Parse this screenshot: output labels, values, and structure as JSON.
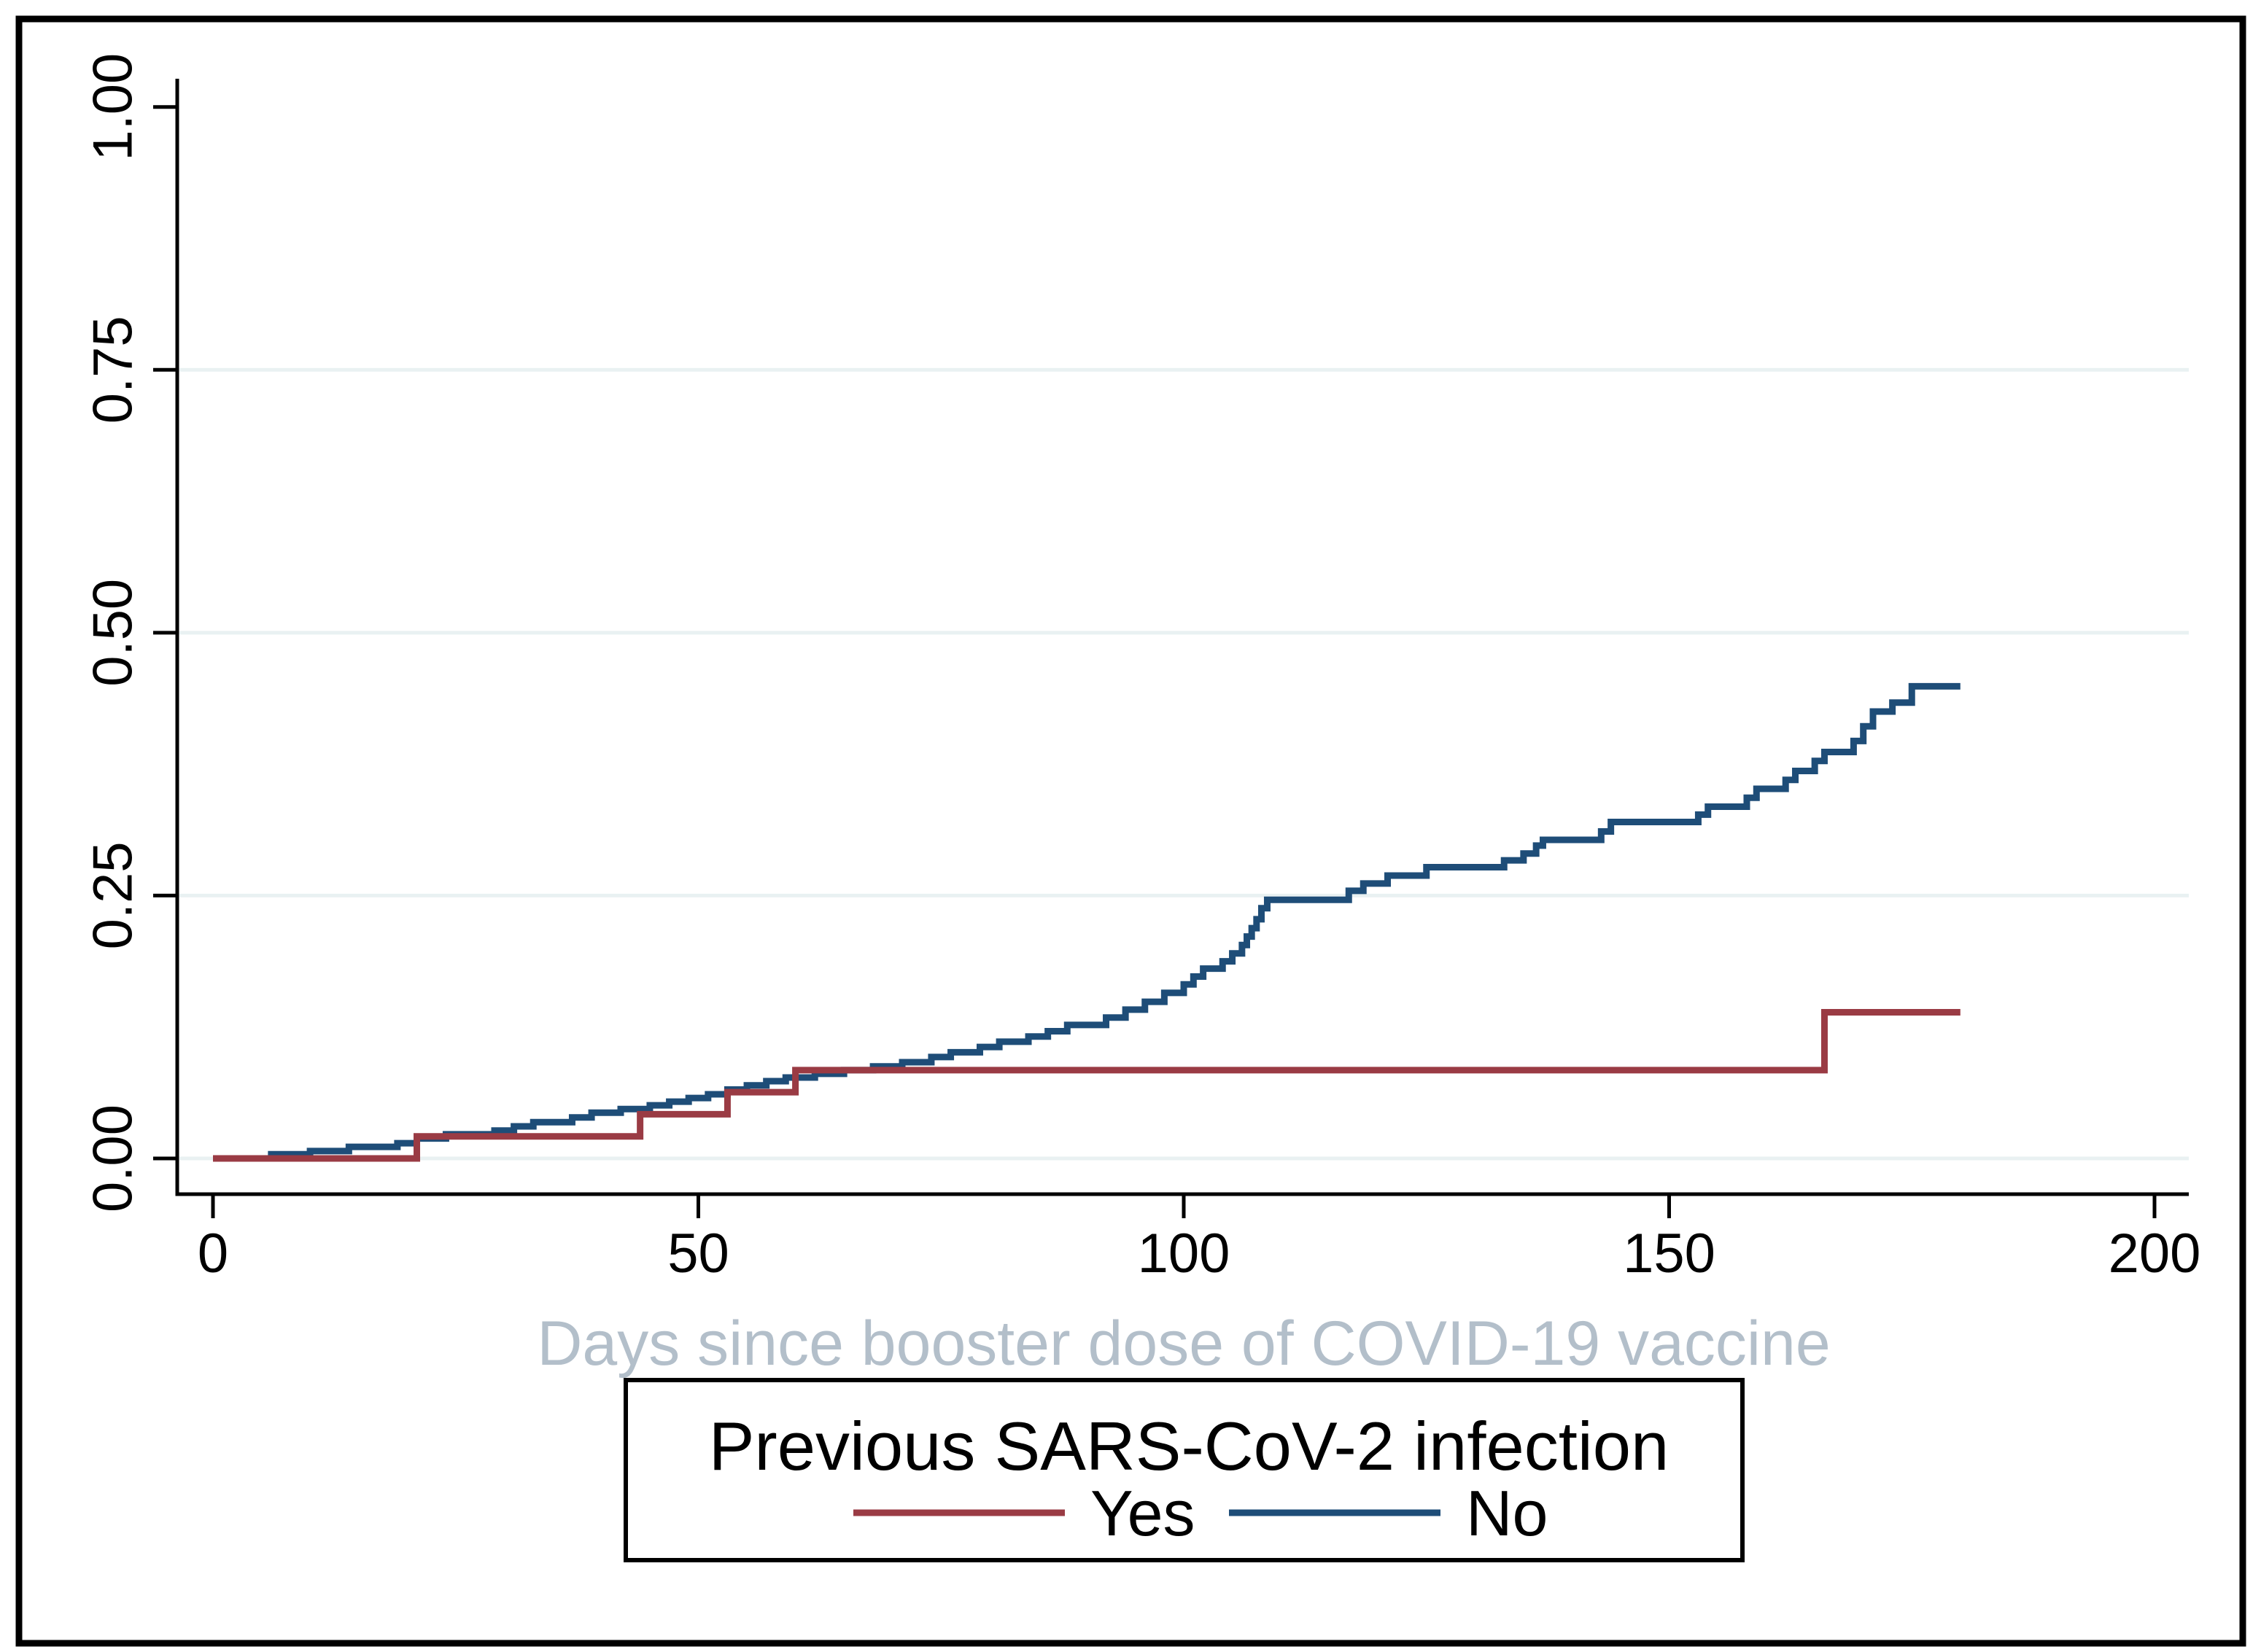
{
  "figure": {
    "background": "#ffffff",
    "border_color": "#000000"
  },
  "chart_data": {
    "type": "line",
    "subtype": "kaplan-meier-cumulative-incidence-steps",
    "title": "",
    "xlabel": "Days since booster dose of COVID-19 vaccine",
    "ylabel": "",
    "xlim": [
      0,
      200
    ],
    "ylim": [
      0.0,
      1.0
    ],
    "xticks": [
      0,
      50,
      100,
      150,
      200
    ],
    "ytick_labels": [
      "0.00",
      "0.25",
      "0.50",
      "0.75",
      "1.00"
    ],
    "ytick_values": [
      0.0,
      0.25,
      0.5,
      0.75,
      1.0
    ],
    "grid": "horizontal",
    "gridline_values": [
      0.0,
      0.25,
      0.5,
      0.75
    ],
    "legend": {
      "title": "Previous SARS-CoV-2 infection",
      "position": "bottom-center-boxed",
      "entries": [
        {
          "label": "Yes",
          "color": "#9a3b44"
        },
        {
          "label": "No",
          "color": "#1e4d78"
        }
      ]
    },
    "series": [
      {
        "name": "No",
        "group": "Previous SARS-CoV-2 infection: No",
        "color": "#1e4d78",
        "end_day": 180,
        "steps": [
          [
            0,
            0
          ],
          [
            6,
            0.004
          ],
          [
            10,
            0.007
          ],
          [
            14,
            0.011
          ],
          [
            19,
            0.0145
          ],
          [
            21,
            0.019
          ],
          [
            24,
            0.023
          ],
          [
            29,
            0.0265
          ],
          [
            31,
            0.0305
          ],
          [
            33,
            0.0345
          ],
          [
            37,
            0.039
          ],
          [
            39,
            0.0435
          ],
          [
            42,
            0.047
          ],
          [
            45,
            0.0505
          ],
          [
            47,
            0.054
          ],
          [
            49,
            0.0575
          ],
          [
            51,
            0.061
          ],
          [
            53,
            0.0655
          ],
          [
            55,
            0.0695
          ],
          [
            57,
            0.0735
          ],
          [
            59,
            0.077
          ],
          [
            62,
            0.0805
          ],
          [
            65,
            0.084
          ],
          [
            68,
            0.0875
          ],
          [
            71,
            0.0915
          ],
          [
            74,
            0.0965
          ],
          [
            76,
            0.101
          ],
          [
            79,
            0.106
          ],
          [
            81,
            0.111
          ],
          [
            84,
            0.116
          ],
          [
            86,
            0.121
          ],
          [
            88,
            0.127
          ],
          [
            92,
            0.134
          ],
          [
            94,
            0.1415
          ],
          [
            96,
            0.149
          ],
          [
            98,
            0.1575
          ],
          [
            100,
            0.1655
          ],
          [
            101,
            0.173
          ],
          [
            102,
            0.1805
          ],
          [
            104,
            0.1875
          ],
          [
            105,
            0.195
          ],
          [
            106,
            0.203
          ],
          [
            106.5,
            0.211
          ],
          [
            107,
            0.219
          ],
          [
            107.5,
            0.2275
          ],
          [
            108,
            0.238
          ],
          [
            108.6,
            0.246
          ],
          [
            117,
            0.2545
          ],
          [
            118.5,
            0.2615
          ],
          [
            121,
            0.269
          ],
          [
            125,
            0.277
          ],
          [
            133,
            0.2835
          ],
          [
            135,
            0.29
          ],
          [
            136.3,
            0.2975
          ],
          [
            137,
            0.303
          ],
          [
            143,
            0.311
          ],
          [
            144,
            0.32
          ],
          [
            153,
            0.327
          ],
          [
            154,
            0.3345
          ],
          [
            158,
            0.343
          ],
          [
            159,
            0.3515
          ],
          [
            162,
            0.36
          ],
          [
            163,
            0.3685
          ],
          [
            165,
            0.378
          ],
          [
            166,
            0.3865
          ],
          [
            169,
            0.397
          ],
          [
            170,
            0.411
          ],
          [
            171,
            0.425
          ],
          [
            173,
            0.4335
          ],
          [
            175,
            0.449
          ],
          [
            180,
            0.449
          ]
        ]
      },
      {
        "name": "Yes",
        "group": "Previous SARS-CoV-2 infection: Yes",
        "color": "#9a3b44",
        "end_day": 180,
        "steps": [
          [
            0,
            0
          ],
          [
            21,
            0.021
          ],
          [
            44,
            0.042
          ],
          [
            53,
            0.063
          ],
          [
            60,
            0.084
          ],
          [
            166,
            0.139
          ],
          [
            180,
            0.139
          ]
        ]
      }
    ]
  },
  "colors": {
    "background": "#ffffff",
    "axis": "#000000",
    "tick_label": "#000000",
    "gridline": "#e9f1f2",
    "xlabel_text": "#b3bfca",
    "legend_border": "#000000",
    "legend_text": "#000000",
    "series_yes": "#9a3b44",
    "series_no": "#1e4d78"
  }
}
